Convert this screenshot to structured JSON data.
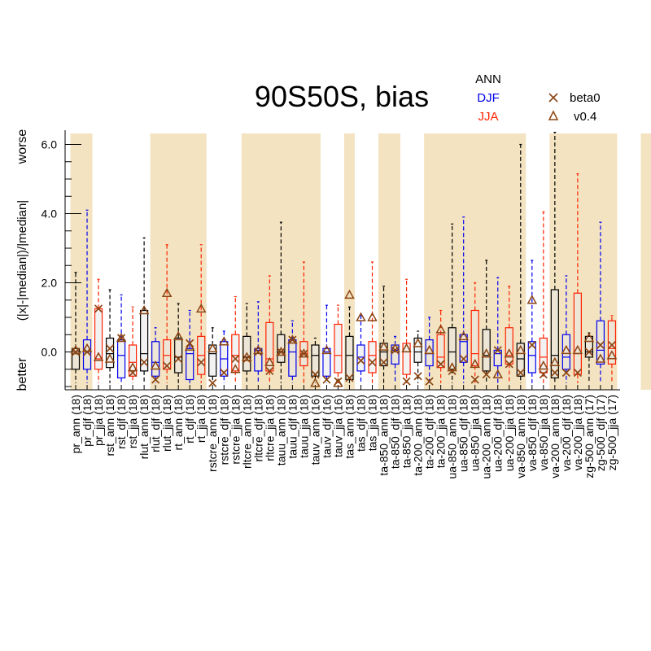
{
  "chart_data": {
    "type": "box",
    "title": "90S50S, bias",
    "ylabel_main": "(|x|-|median|)/|median|",
    "ylabel_top": "worse",
    "ylabel_bottom": "better",
    "ylim": [
      -1.1,
      6.4
    ],
    "yticks": [
      "6.0",
      "4.0",
      "2.0",
      "0.0"
    ],
    "season_legend": [
      "ANN",
      "DJF",
      "JJA"
    ],
    "marker_legend": [
      "beta0",
      "v0.4"
    ],
    "colors": {
      "ANN": "#000000",
      "DJF": "#0000ee",
      "JJA": "#ff2200",
      "markers": "#8b4513",
      "shade": "#f3e3c0",
      "fill": "#e8e8e8"
    },
    "shaded_groups": [
      [
        0,
        1
      ],
      [
        7,
        11
      ],
      [
        15,
        21
      ],
      [
        24,
        24
      ],
      [
        27,
        28
      ],
      [
        31,
        39
      ],
      [
        42,
        47
      ],
      [
        50,
        51
      ],
      [
        54,
        55
      ],
      [
        58,
        61
      ]
    ],
    "categories": [
      "pr_ann (18)",
      "pr_djf (18)",
      "pr_jja (18)",
      "rst_ann (18)",
      "rst_djf (18)",
      "rst_jja (18)",
      "rlut_ann (18)",
      "rlut_djf (18)",
      "rlut_jja (18)",
      "rt_ann (18)",
      "rt_djf (18)",
      "rt_jja (18)",
      "rstcre_ann (18)",
      "rstcre_djf (18)",
      "rstcre_jja (18)",
      "rltcre_ann (18)",
      "rltcre_djf (18)",
      "rltcre_jja (18)",
      "tauu_ann (18)",
      "tauu_djf (18)",
      "tauu_jja (18)",
      "tauv_ann (16)",
      "tauv_djf (16)",
      "tauv_jja (16)",
      "tas_ann (18)",
      "tas_djf (18)",
      "tas_jja (18)",
      "ta-850_ann (18)",
      "ta-850_djf (18)",
      "ta-850_jja (18)",
      "ta-200_ann (18)",
      "ta-200_djf (18)",
      "ta-200_jja (18)",
      "ua-850_ann (18)",
      "ua-850_djf (18)",
      "ua-850_jja (18)",
      "ua-200_ann (18)",
      "ua-200_djf (18)",
      "ua-200_jja (18)",
      "va-850_ann (18)",
      "va-850_djf (18)",
      "va-850_jja (18)",
      "va-200_ann (18)",
      "va-200_djf (18)",
      "va-200_jja (18)",
      "zg-500_ann (17)",
      "zg-500_djf (17)",
      "zg-500_jja (17)"
    ],
    "boxes": [
      {
        "min": -0.9,
        "q1": -0.5,
        "med": -0.05,
        "q3": 0.1,
        "max": 2.3,
        "beta0": 0.0,
        "v04": 0.05
      },
      {
        "min": -0.9,
        "q1": -0.5,
        "med": 0.0,
        "q3": 0.35,
        "max": 4.1,
        "beta0": 0.0,
        "v04": 0.1
      },
      {
        "min": -0.9,
        "q1": -0.5,
        "med": -0.2,
        "q3": 1.25,
        "max": 2.1,
        "beta0": 1.25,
        "v04": -0.15
      },
      {
        "min": -0.9,
        "q1": -0.45,
        "med": -0.05,
        "q3": 0.4,
        "max": 1.8,
        "beta0": 0.1,
        "v04": -0.2
      },
      {
        "min": -0.9,
        "q1": -0.75,
        "med": -0.1,
        "q3": 0.35,
        "max": 1.65,
        "beta0": 0.4,
        "v04": 0.4
      },
      {
        "min": -0.9,
        "q1": -0.7,
        "med": -0.3,
        "q3": 0.2,
        "max": 1.3,
        "beta0": -0.6,
        "v04": -0.45
      },
      {
        "min": -0.9,
        "q1": -0.55,
        "med": -0.05,
        "q3": 1.2,
        "max": 3.3,
        "beta0": -0.3,
        "v04": 1.2
      },
      {
        "min": -0.9,
        "q1": -0.7,
        "med": -0.3,
        "q3": 0.3,
        "max": 0.7,
        "beta0": -0.8,
        "v04": -0.4
      },
      {
        "min": -0.9,
        "q1": -0.5,
        "med": -0.1,
        "q3": 0.35,
        "max": 3.1,
        "beta0": -0.4,
        "v04": 1.7
      },
      {
        "min": -0.9,
        "q1": -0.6,
        "med": -0.15,
        "q3": 0.4,
        "max": 1.4,
        "beta0": -0.2,
        "v04": 0.45
      },
      {
        "min": -0.9,
        "q1": -0.8,
        "med": -0.05,
        "q3": 0.1,
        "max": 1.2,
        "beta0": 0.25,
        "v04": 0.15
      },
      {
        "min": -0.9,
        "q1": -0.65,
        "med": -0.1,
        "q3": 0.45,
        "max": 3.1,
        "beta0": -0.3,
        "v04": 1.25
      },
      {
        "min": -0.9,
        "q1": -0.7,
        "med": -0.05,
        "q3": 0.2,
        "max": 0.7,
        "beta0": -0.9,
        "v04": 0.1
      },
      {
        "min": -0.9,
        "q1": -0.7,
        "med": -0.2,
        "q3": 0.3,
        "max": 0.6,
        "beta0": -0.6,
        "v04": 0.3
      },
      {
        "min": -0.9,
        "q1": -0.55,
        "med": -0.1,
        "q3": 0.5,
        "max": 1.6,
        "beta0": -0.2,
        "v04": -0.5
      },
      {
        "min": -0.9,
        "q1": -0.55,
        "med": -0.15,
        "q3": 0.45,
        "max": 1.4,
        "beta0": -0.2,
        "v04": -0.15
      },
      {
        "min": -0.9,
        "q1": -0.55,
        "med": 0.05,
        "q3": 0.1,
        "max": 1.45,
        "beta0": 0.0,
        "v04": 0.05
      },
      {
        "min": -0.9,
        "q1": -0.55,
        "med": -0.2,
        "q3": 0.85,
        "max": 2.2,
        "beta0": -0.55,
        "v04": -0.3
      },
      {
        "min": -0.9,
        "q1": -0.3,
        "med": 0.0,
        "q3": 0.5,
        "max": 3.75,
        "beta0": 0.0,
        "v04": 0.0
      },
      {
        "min": -0.9,
        "q1": -0.7,
        "med": 0.0,
        "q3": 0.35,
        "max": 0.9,
        "beta0": 0.35,
        "v04": 0.35
      },
      {
        "min": -0.9,
        "q1": -0.4,
        "med": -0.05,
        "q3": 0.3,
        "max": 2.6,
        "beta0": -0.05,
        "v04": -0.05
      },
      {
        "min": -0.9,
        "q1": -0.7,
        "med": -0.1,
        "q3": 0.2,
        "max": 0.4,
        "beta0": -0.65,
        "v04": -0.9
      },
      {
        "min": -0.9,
        "q1": -0.7,
        "med": 0.0,
        "q3": 0.1,
        "max": 1.35,
        "beta0": -0.8,
        "v04": 0.05
      },
      {
        "min": -0.9,
        "q1": -0.6,
        "med": -0.1,
        "q3": 0.8,
        "max": 1.35,
        "beta0": -0.85,
        "v04": -0.9
      },
      {
        "min": -0.9,
        "q1": -0.8,
        "med": -0.1,
        "q3": 0.45,
        "max": 1.3,
        "beta0": -0.75,
        "v04": 1.65
      },
      {
        "min": -0.9,
        "q1": -0.55,
        "med": -0.15,
        "q3": 0.2,
        "max": 1.05,
        "beta0": -0.25,
        "v04": 1.0
      },
      {
        "min": -0.9,
        "q1": -0.6,
        "med": -0.1,
        "q3": 0.3,
        "max": 2.6,
        "beta0": -0.3,
        "v04": 1.0
      },
      {
        "min": -0.9,
        "q1": -0.4,
        "med": 0.0,
        "q3": 0.25,
        "max": 1.9,
        "beta0": -0.3,
        "v04": 0.15
      },
      {
        "min": -0.9,
        "q1": -0.35,
        "med": 0.05,
        "q3": 0.2,
        "max": 0.45,
        "beta0": 0.05,
        "v04": 0.1
      },
      {
        "min": -0.9,
        "q1": -0.65,
        "med": 0.0,
        "q3": 0.25,
        "max": 2.1,
        "beta0": -0.85,
        "v04": 0.1
      },
      {
        "min": -0.9,
        "q1": -0.3,
        "med": 0.0,
        "q3": 0.4,
        "max": 0.6,
        "beta0": -0.7,
        "v04": 0.25
      },
      {
        "min": -0.9,
        "q1": -0.4,
        "med": -0.05,
        "q3": 0.35,
        "max": 1.0,
        "beta0": -0.85,
        "v04": 0.05
      },
      {
        "min": -0.9,
        "q1": -0.45,
        "med": -0.15,
        "q3": 0.5,
        "max": 1.2,
        "beta0": -0.35,
        "v04": 0.65
      },
      {
        "min": -0.9,
        "q1": -0.5,
        "med": 0.0,
        "q3": 0.7,
        "max": 3.7,
        "beta0": -0.55,
        "v04": -0.45
      },
      {
        "min": -0.9,
        "q1": -0.3,
        "med": 0.3,
        "q3": 0.5,
        "max": 3.9,
        "beta0": -0.2,
        "v04": 0.45
      },
      {
        "min": -0.9,
        "q1": -0.4,
        "med": -0.05,
        "q3": 1.2,
        "max": 2.0,
        "beta0": -0.8,
        "v04": -0.35
      },
      {
        "min": -0.9,
        "q1": -0.55,
        "med": -0.1,
        "q3": 0.65,
        "max": 2.65,
        "beta0": -0.65,
        "v04": -0.05
      },
      {
        "min": -0.9,
        "q1": -0.4,
        "med": -0.05,
        "q3": 0.05,
        "max": 2.15,
        "beta0": 0.05,
        "v04": -0.65
      },
      {
        "min": -0.9,
        "q1": -0.35,
        "med": -0.1,
        "q3": 0.7,
        "max": 1.9,
        "beta0": -0.35,
        "v04": -0.05
      },
      {
        "min": -0.9,
        "q1": -0.7,
        "med": -0.2,
        "q3": 0.25,
        "max": 6.0,
        "beta0": -0.6,
        "v04": 0.05
      },
      {
        "min": -0.9,
        "q1": -0.6,
        "med": -0.1,
        "q3": 0.3,
        "max": 2.65,
        "beta0": 0.2,
        "v04": 1.5
      },
      {
        "min": -0.9,
        "q1": -0.6,
        "med": -0.15,
        "q3": 0.4,
        "max": 4.05,
        "beta0": -0.65,
        "v04": -0.4
      },
      {
        "min": -0.9,
        "q1": -0.75,
        "med": -0.1,
        "q3": 1.8,
        "max": 6.35,
        "beta0": -0.6,
        "v04": -0.3
      },
      {
        "min": -0.9,
        "q1": -0.5,
        "med": -0.15,
        "q3": 0.5,
        "max": 2.2,
        "beta0": -0.6,
        "v04": 0.05
      },
      {
        "min": -0.9,
        "q1": -0.65,
        "med": -0.05,
        "q3": 1.7,
        "max": 5.15,
        "beta0": -0.6,
        "v04": 0.05
      },
      {
        "min": -0.9,
        "q1": -0.15,
        "med": 0.0,
        "q3": 0.45,
        "max": 0.55,
        "beta0": 0.0,
        "v04": 0.4
      },
      {
        "min": -0.9,
        "q1": -0.35,
        "med": 0.05,
        "q3": 0.9,
        "max": 3.75,
        "beta0": 0.2,
        "v04": -0.2
      },
      {
        "min": -0.9,
        "q1": -0.35,
        "med": 0.1,
        "q3": 0.9,
        "max": 1.05,
        "beta0": 0.2,
        "v04": -0.1
      }
    ]
  }
}
